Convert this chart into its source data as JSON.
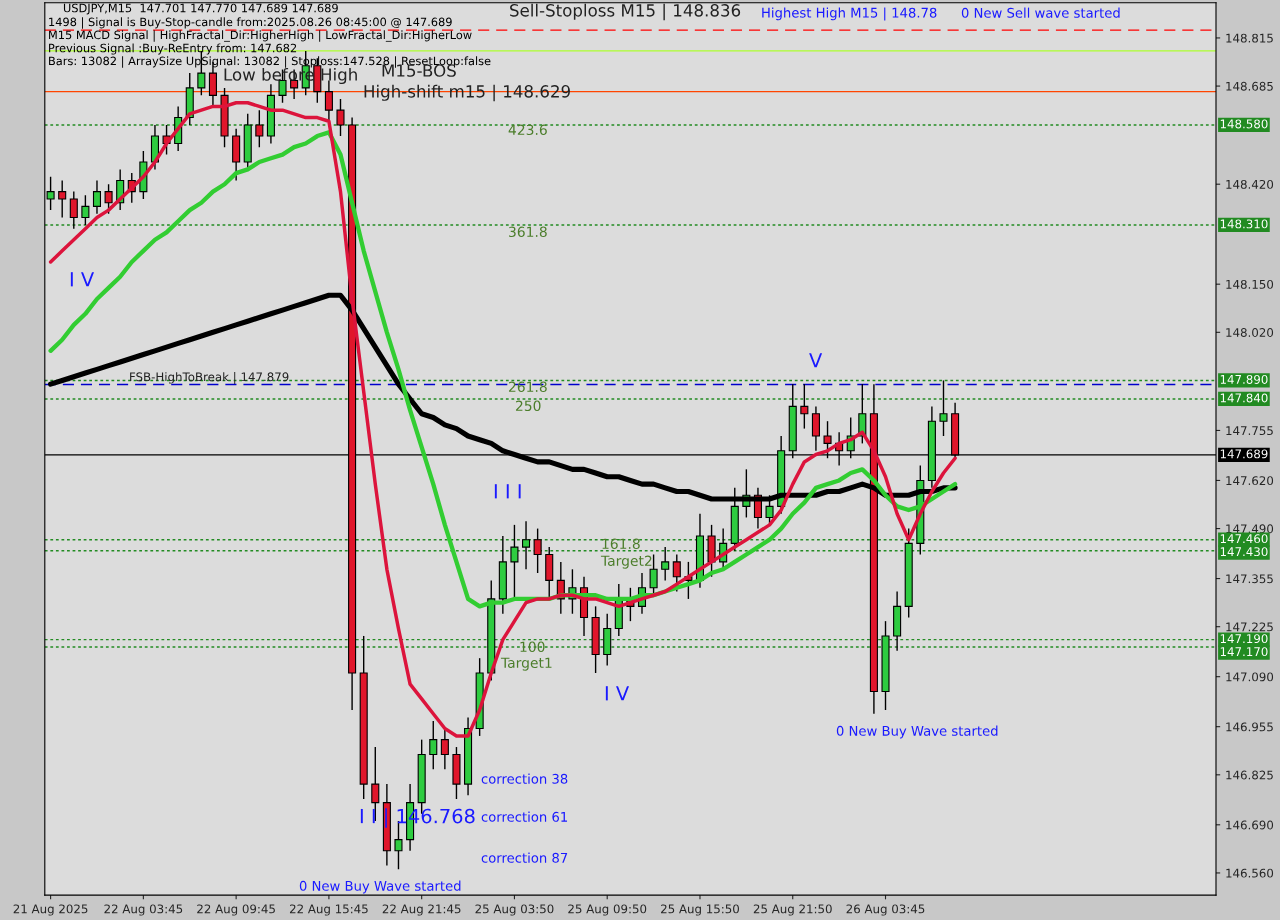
{
  "chart_data": {
    "type": "candlestick",
    "annotations": [
      "USDJPY,M15  147.701 147.770 147.689 147.689",
      "1498 | Signal is Buy-Stop-candle from:2025.08.26 08:45:00 @ 147.689",
      "M15 MACD Signal | HighFractal_Dir:HigherHigh | LowFractal_Dir:HigherLow",
      "Previous Signal :Buy-ReEntry from: 147.682",
      "Bars: 13082 | ArraySize UpSignal: 13082 | Stoploss:147.528 | ResetLoop:false",
      "Sell-Stoploss M15 | 148.836",
      "Highest High M15 | 148.78",
      "0 New Sell wave started",
      "Low before High",
      "M15-BOS",
      "High-shift m15 | 148.629",
      "423.6",
      "361.8",
      "261.8",
      "250",
      "FSB-HighToBreak | 147.879",
      "I V",
      "V",
      "I I I",
      "161.8",
      "Target2",
      "100",
      "Target1",
      "I V",
      "0 New Buy Wave started",
      "0 New Buy Wave started",
      "correction 38",
      "correction 61",
      "correction 87",
      "I I | 146.768"
    ],
    "categories": [
      "21 Aug 2025",
      null,
      null,
      null,
      null,
      null,
      null,
      null,
      "22 Aug 03:45",
      null,
      null,
      null,
      null,
      null,
      null,
      null,
      "22 Aug 09:45",
      null,
      null,
      null,
      null,
      null,
      null,
      null,
      "22 Aug 15:45",
      null,
      null,
      null,
      null,
      null,
      null,
      null,
      "22 Aug 21:45",
      null,
      null,
      null,
      null,
      null,
      null,
      null,
      "25 Aug 03:50",
      null,
      null,
      null,
      null,
      null,
      null,
      null,
      "25 Aug 09:50",
      null,
      null,
      null,
      null,
      null,
      null,
      null,
      "25 Aug 15:50",
      null,
      null,
      null,
      null,
      null,
      null,
      null,
      "25 Aug 21:50",
      null,
      null,
      null,
      null,
      null,
      null,
      null,
      "26 Aug 03:45",
      null,
      null,
      null,
      null,
      null,
      null
    ],
    "ohlc": [
      [
        148.38,
        148.44,
        148.35,
        148.4
      ],
      [
        148.4,
        148.43,
        148.33,
        148.38
      ],
      [
        148.38,
        148.4,
        148.3,
        148.33
      ],
      [
        148.33,
        148.39,
        148.31,
        148.36
      ],
      [
        148.36,
        148.43,
        148.34,
        148.4
      ],
      [
        148.4,
        148.42,
        148.34,
        148.37
      ],
      [
        148.37,
        148.46,
        148.35,
        148.43
      ],
      [
        148.43,
        148.45,
        148.37,
        148.4
      ],
      [
        148.4,
        148.51,
        148.38,
        148.48
      ],
      [
        148.48,
        148.58,
        148.46,
        148.55
      ],
      [
        148.55,
        148.58,
        148.5,
        148.53
      ],
      [
        148.53,
        148.63,
        148.51,
        148.6
      ],
      [
        148.6,
        148.72,
        148.58,
        148.68
      ],
      [
        148.68,
        148.78,
        148.66,
        148.72
      ],
      [
        148.72,
        148.75,
        148.63,
        148.66
      ],
      [
        148.66,
        148.68,
        148.52,
        148.55
      ],
      [
        148.55,
        148.57,
        148.43,
        148.48
      ],
      [
        148.48,
        148.61,
        148.46,
        148.58
      ],
      [
        148.58,
        148.62,
        148.52,
        148.55
      ],
      [
        148.55,
        148.69,
        148.53,
        148.66
      ],
      [
        148.66,
        148.73,
        148.64,
        148.7
      ],
      [
        148.7,
        148.73,
        148.65,
        148.68
      ],
      [
        148.68,
        148.78,
        148.66,
        148.74
      ],
      [
        148.74,
        148.76,
        148.64,
        148.67
      ],
      [
        148.67,
        148.7,
        148.59,
        148.62
      ],
      [
        148.62,
        148.65,
        148.55,
        148.58
      ],
      [
        148.58,
        148.6,
        147.0,
        147.1
      ],
      [
        147.1,
        147.2,
        146.76,
        146.8
      ],
      [
        146.8,
        146.9,
        146.7,
        146.75
      ],
      [
        146.75,
        146.8,
        146.58,
        146.62
      ],
      [
        146.62,
        146.7,
        146.57,
        146.65
      ],
      [
        146.65,
        146.8,
        146.62,
        146.75
      ],
      [
        146.75,
        146.92,
        146.72,
        146.88
      ],
      [
        146.88,
        146.97,
        146.84,
        146.92
      ],
      [
        146.92,
        146.95,
        146.84,
        146.88
      ],
      [
        146.88,
        146.9,
        146.76,
        146.8
      ],
      [
        146.8,
        146.98,
        146.77,
        146.95
      ],
      [
        146.95,
        147.14,
        146.93,
        147.1
      ],
      [
        147.1,
        147.35,
        147.08,
        147.3
      ],
      [
        147.3,
        147.47,
        147.26,
        147.4
      ],
      [
        147.4,
        147.5,
        147.3,
        147.44
      ],
      [
        147.44,
        147.51,
        147.38,
        147.46
      ],
      [
        147.46,
        147.49,
        147.37,
        147.42
      ],
      [
        147.42,
        147.44,
        147.3,
        147.35
      ],
      [
        147.35,
        147.4,
        147.26,
        147.3
      ],
      [
        147.3,
        147.38,
        147.26,
        147.33
      ],
      [
        147.33,
        147.36,
        147.2,
        147.25
      ],
      [
        147.25,
        147.28,
        147.1,
        147.15
      ],
      [
        147.15,
        147.26,
        147.12,
        147.22
      ],
      [
        147.22,
        147.34,
        147.2,
        147.3
      ],
      [
        147.3,
        147.33,
        147.24,
        147.28
      ],
      [
        147.28,
        147.37,
        147.26,
        147.33
      ],
      [
        147.33,
        147.42,
        147.31,
        147.38
      ],
      [
        147.38,
        147.44,
        147.35,
        147.4
      ],
      [
        147.4,
        147.42,
        147.32,
        147.36
      ],
      [
        147.36,
        147.4,
        147.3,
        147.35
      ],
      [
        147.35,
        147.53,
        147.33,
        147.47
      ],
      [
        147.47,
        147.5,
        147.36,
        147.4
      ],
      [
        147.4,
        147.49,
        147.38,
        147.45
      ],
      [
        147.45,
        147.6,
        147.43,
        147.55
      ],
      [
        147.55,
        147.65,
        147.52,
        147.58
      ],
      [
        147.58,
        147.6,
        147.49,
        147.52
      ],
      [
        147.52,
        147.58,
        147.5,
        147.55
      ],
      [
        147.55,
        147.74,
        147.53,
        147.7
      ],
      [
        147.7,
        147.88,
        147.68,
        147.82
      ],
      [
        147.82,
        147.88,
        147.76,
        147.8
      ],
      [
        147.8,
        147.82,
        147.7,
        147.74
      ],
      [
        147.74,
        147.78,
        147.68,
        147.72
      ],
      [
        147.72,
        147.75,
        147.66,
        147.7
      ],
      [
        147.7,
        147.79,
        147.68,
        147.74
      ],
      [
        147.74,
        147.88,
        147.72,
        147.8
      ],
      [
        147.8,
        147.88,
        146.99,
        147.05
      ],
      [
        147.05,
        147.24,
        147.0,
        147.2
      ],
      [
        147.2,
        147.32,
        147.16,
        147.28
      ],
      [
        147.28,
        147.49,
        147.25,
        147.45
      ],
      [
        147.45,
        147.66,
        147.42,
        147.62
      ],
      [
        147.62,
        147.82,
        147.6,
        147.78
      ],
      [
        147.78,
        147.89,
        147.74,
        147.8
      ],
      [
        147.8,
        147.83,
        147.68,
        147.689
      ]
    ],
    "colors": [
      "#2ecc40",
      "#e0162b",
      "#e0162b",
      "#2ecc40",
      "#2ecc40",
      "#e0162b",
      "#2ecc40",
      "#e0162b",
      "#2ecc40",
      "#2ecc40",
      "#e0162b",
      "#2ecc40",
      "#2ecc40",
      "#2ecc40",
      "#e0162b",
      "#e0162b",
      "#e0162b",
      "#2ecc40",
      "#e0162b",
      "#2ecc40",
      "#2ecc40",
      "#e0162b",
      "#2ecc40",
      "#e0162b",
      "#e0162b",
      "#e0162b",
      "#e0162b",
      "#e0162b",
      "#e0162b",
      "#e0162b",
      "#2ecc40",
      "#2ecc40",
      "#2ecc40",
      "#2ecc40",
      "#e0162b",
      "#e0162b",
      "#2ecc40",
      "#2ecc40",
      "#2ecc40",
      "#2ecc40",
      "#2ecc40",
      "#2ecc40",
      "#e0162b",
      "#e0162b",
      "#e0162b",
      "#2ecc40",
      "#e0162b",
      "#e0162b",
      "#2ecc40",
      "#2ecc40",
      "#e0162b",
      "#2ecc40",
      "#2ecc40",
      "#2ecc40",
      "#e0162b",
      "#e0162b",
      "#2ecc40",
      "#e0162b",
      "#2ecc40",
      "#2ecc40",
      "#2ecc40",
      "#e0162b",
      "#2ecc40",
      "#2ecc40",
      "#2ecc40",
      "#e0162b",
      "#e0162b",
      "#e0162b",
      "#e0162b",
      "#2ecc40",
      "#2ecc40",
      "#e0162b",
      "#2ecc40",
      "#2ecc40",
      "#2ecc40",
      "#2ecc40",
      "#2ecc40",
      "#2ecc40",
      "#e0162b"
    ],
    "series": [
      {
        "type": "line",
        "color": "#000000",
        "values": [
          147.88,
          147.89,
          147.9,
          147.91,
          147.92,
          147.93,
          147.94,
          147.95,
          147.96,
          147.97,
          147.98,
          147.99,
          148.0,
          148.01,
          148.02,
          148.03,
          148.04,
          148.05,
          148.06,
          148.07,
          148.08,
          148.09,
          148.1,
          148.11,
          148.12,
          148.12,
          148.08,
          148.03,
          147.98,
          147.93,
          147.88,
          147.84,
          147.8,
          147.79,
          147.77,
          147.76,
          147.74,
          147.73,
          147.72,
          147.7,
          147.69,
          147.68,
          147.67,
          147.67,
          147.66,
          147.65,
          147.65,
          147.64,
          147.63,
          147.63,
          147.62,
          147.61,
          147.61,
          147.6,
          147.59,
          147.59,
          147.58,
          147.57,
          147.57,
          147.57,
          147.57,
          147.57,
          147.57,
          147.58,
          147.58,
          147.58,
          147.58,
          147.59,
          147.59,
          147.6,
          147.61,
          147.6,
          147.58,
          147.58,
          147.58,
          147.59,
          147.59,
          147.6,
          147.6
        ]
      },
      {
        "type": "line",
        "color": "#32cd32",
        "values": [
          147.97,
          148.0,
          148.04,
          148.07,
          148.11,
          148.14,
          148.17,
          148.21,
          148.24,
          148.27,
          148.29,
          148.32,
          148.35,
          148.37,
          148.4,
          148.42,
          148.45,
          148.46,
          148.48,
          148.49,
          148.5,
          148.52,
          148.53,
          148.55,
          148.56,
          148.5,
          148.37,
          148.24,
          148.13,
          148.02,
          147.92,
          147.81,
          147.71,
          147.61,
          147.5,
          147.4,
          147.3,
          147.28,
          147.29,
          147.29,
          147.3,
          147.3,
          147.3,
          147.3,
          147.31,
          147.31,
          147.31,
          147.31,
          147.3,
          147.3,
          147.3,
          147.31,
          147.31,
          147.32,
          147.33,
          147.34,
          147.35,
          147.37,
          147.38,
          147.4,
          147.42,
          147.44,
          147.46,
          147.49,
          147.53,
          147.56,
          147.6,
          147.61,
          147.62,
          147.64,
          147.65,
          147.62,
          147.58,
          147.55,
          147.54,
          147.55,
          147.57,
          147.59,
          147.61
        ]
      },
      {
        "type": "line",
        "color": "#dc143c",
        "values": [
          148.21,
          148.24,
          148.27,
          148.3,
          148.33,
          148.35,
          148.38,
          148.41,
          148.44,
          148.48,
          148.53,
          148.57,
          148.61,
          148.62,
          148.63,
          148.63,
          148.64,
          148.64,
          148.63,
          148.62,
          148.62,
          148.61,
          148.6,
          148.6,
          148.59,
          148.4,
          148.11,
          147.86,
          147.61,
          147.38,
          147.22,
          147.07,
          147.03,
          146.99,
          146.95,
          146.93,
          146.93,
          147.0,
          147.1,
          147.19,
          147.24,
          147.29,
          147.3,
          147.3,
          147.31,
          147.31,
          147.3,
          147.3,
          147.29,
          147.28,
          147.29,
          147.3,
          147.31,
          147.32,
          147.34,
          147.36,
          147.38,
          147.4,
          147.42,
          147.44,
          147.46,
          147.48,
          147.5,
          147.54,
          147.61,
          147.67,
          147.69,
          147.7,
          147.72,
          147.73,
          147.75,
          147.7,
          147.63,
          147.53,
          147.46,
          147.53,
          147.59,
          147.64,
          147.68
        ]
      }
    ],
    "ref_lines": [
      {
        "axis": "y",
        "value": 148.836,
        "color": "#ff0000",
        "line_style": "dashed"
      },
      {
        "axis": "y",
        "value": 148.78,
        "color": "#adff2f",
        "line_style": "solid"
      },
      {
        "axis": "y",
        "value": 148.67,
        "color": "#ff4500",
        "line_style": "solid"
      },
      {
        "axis": "y",
        "value": 148.58,
        "label": "148.580",
        "color": "#228b22",
        "line_style": "dotted"
      },
      {
        "axis": "y",
        "value": 148.31,
        "label": "148.310",
        "color": "#228b22",
        "line_style": "dotted"
      },
      {
        "axis": "y",
        "value": 147.89,
        "label": "147.890",
        "color": "#228b22",
        "line_style": "dotted"
      },
      {
        "axis": "y",
        "value": 147.879,
        "color": "#0000cd",
        "line_style": "dashed"
      },
      {
        "axis": "y",
        "value": 147.84,
        "label": "147.840",
        "color": "#228b22",
        "line_style": "dotted"
      },
      {
        "axis": "y",
        "value": 147.689,
        "label": "147.689",
        "color": "#000000",
        "line_style": "solid"
      },
      {
        "axis": "y",
        "value": 147.46,
        "label": "147.460",
        "color": "#228b22",
        "line_style": "dotted"
      },
      {
        "axis": "y",
        "value": 147.43,
        "label": "147.430",
        "color": "#228b22",
        "line_style": "dotted"
      },
      {
        "axis": "y",
        "value": 147.19,
        "label": "147.190",
        "color": "#228b22",
        "line_style": "dotted"
      },
      {
        "axis": "y",
        "value": 147.17,
        "label": "147.170",
        "color": "#228b22",
        "line_style": "dotted"
      }
    ],
    "ylim": [
      146.5,
      148.91
    ],
    "yticks": [
      {
        "value": 148.815,
        "label": "148.815"
      },
      {
        "value": 148.685,
        "label": "148.685"
      },
      {
        "value": 148.42,
        "label": "148.420"
      },
      {
        "value": 148.15,
        "label": "148.150"
      },
      {
        "value": 148.02,
        "label": "148.020"
      },
      {
        "value": 147.755,
        "label": "147.755"
      },
      {
        "value": 147.62,
        "label": "147.620"
      },
      {
        "value": 147.49,
        "label": "147.490"
      },
      {
        "value": 147.355,
        "label": "147.355"
      },
      {
        "value": 147.225,
        "label": "147.225"
      },
      {
        "value": 147.09,
        "label": "147.090"
      },
      {
        "value": 146.955,
        "label": "146.955"
      },
      {
        "value": 146.825,
        "label": "146.825"
      },
      {
        "value": 146.69,
        "label": "146.690"
      },
      {
        "value": 146.56,
        "label": "146.560"
      }
    ],
    "grid": false
  }
}
